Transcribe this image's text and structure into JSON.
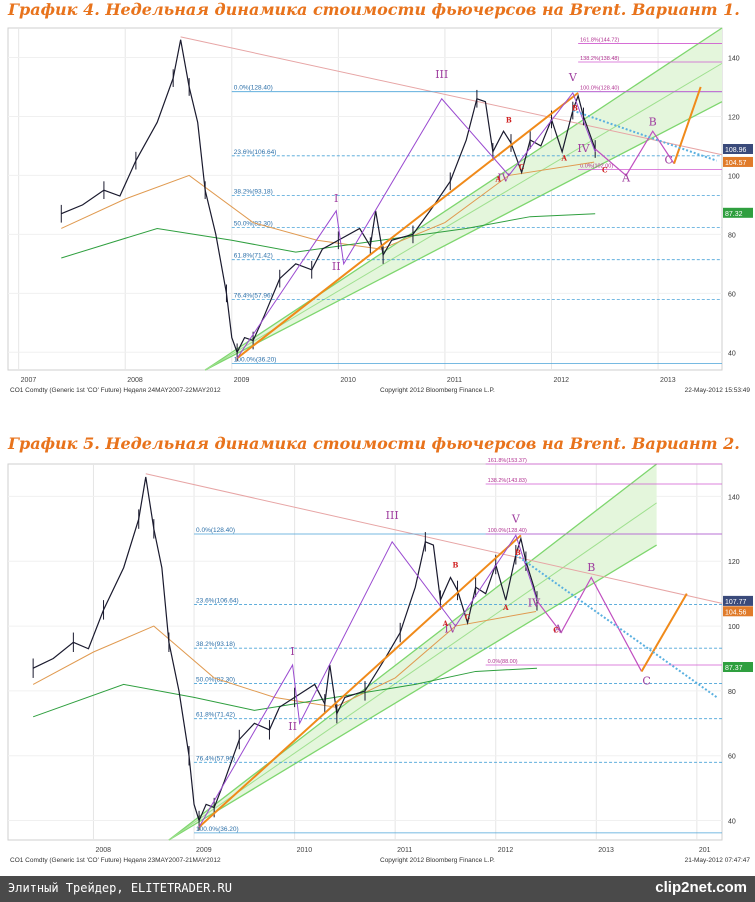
{
  "chart_data": [
    {
      "type": "line",
      "title": "График 4.   Недельная динамика стоимости фьючерсов на Brent. Вариант 1.",
      "source_label": "CO1 Comdty (Generic 1st 'CO' Future) Неделя 24MAY2007-22MAY2012",
      "copyright": "Copyright 2012 Bloomberg Finance L.P.",
      "timestamp": "22-May-2012 15:53:49",
      "x_ticks": [
        "2007",
        "2008",
        "2009",
        "2010",
        "2011",
        "2012",
        "2013"
      ],
      "y_ticks": [
        40,
        60,
        80,
        100,
        120,
        140
      ],
      "ylim": [
        34,
        150
      ],
      "price_path": [
        [
          2007.4,
          87
        ],
        [
          2007.6,
          90
        ],
        [
          2007.8,
          95
        ],
        [
          2007.95,
          93
        ],
        [
          2008.1,
          105
        ],
        [
          2008.3,
          118
        ],
        [
          2008.45,
          133
        ],
        [
          2008.52,
          146
        ],
        [
          2008.6,
          130
        ],
        [
          2008.68,
          118
        ],
        [
          2008.75,
          95
        ],
        [
          2008.85,
          80
        ],
        [
          2008.95,
          60
        ],
        [
          2009.0,
          45
        ],
        [
          2009.05,
          40
        ],
        [
          2009.12,
          45
        ],
        [
          2009.2,
          44
        ],
        [
          2009.3,
          52
        ],
        [
          2009.45,
          65
        ],
        [
          2009.6,
          70
        ],
        [
          2009.75,
          68
        ],
        [
          2009.85,
          75
        ],
        [
          2010.0,
          78
        ],
        [
          2010.2,
          82
        ],
        [
          2010.3,
          76
        ],
        [
          2010.35,
          88
        ],
        [
          2010.42,
          73
        ],
        [
          2010.5,
          78
        ],
        [
          2010.7,
          80
        ],
        [
          2010.9,
          90
        ],
        [
          2011.05,
          98
        ],
        [
          2011.2,
          112
        ],
        [
          2011.3,
          126
        ],
        [
          2011.38,
          125
        ],
        [
          2011.45,
          108
        ],
        [
          2011.55,
          115
        ],
        [
          2011.62,
          111
        ],
        [
          2011.72,
          101
        ],
        [
          2011.8,
          112
        ],
        [
          2011.9,
          110
        ],
        [
          2012.0,
          119
        ],
        [
          2012.1,
          108
        ],
        [
          2012.2,
          122
        ],
        [
          2012.25,
          127
        ],
        [
          2012.3,
          120
        ],
        [
          2012.38,
          112
        ],
        [
          2012.41,
          108.96
        ]
      ],
      "fib_levels": [
        {
          "label": "0.0%(128.40)",
          "value": 128.4
        },
        {
          "label": "23.6%(106.64)",
          "value": 106.64
        },
        {
          "label": "38.2%(93.18)",
          "value": 93.18
        },
        {
          "label": "50.0%(82.30)",
          "value": 82.3
        },
        {
          "label": "61.8%(71.42)",
          "value": 71.42
        },
        {
          "label": "76.4%(57.96)",
          "value": 57.96
        },
        {
          "label": "100.0%(36.20)",
          "value": 36.2
        }
      ],
      "fib_ext": [
        {
          "label": "161.8%(144.72)",
          "value": 144.72
        },
        {
          "label": "138.2%(138.48)",
          "value": 138.48
        },
        {
          "label": "100.0%(128.40)",
          "value": 128.4
        },
        {
          "label": "0.0%(102.00)",
          "value": 102.0
        }
      ],
      "fib_ext_x": 2012.25,
      "price_tags": [
        {
          "label": "108.96",
          "value": 108.96,
          "color": "#3a4a7a"
        },
        {
          "label": "104.57",
          "value": 104.57,
          "color": "#e07b2a"
        },
        {
          "label": "87.32",
          "value": 87.32,
          "color": "#2f9f3f"
        }
      ],
      "wave_labels": [
        {
          "text": "I",
          "x": 2009.98,
          "y": 91
        },
        {
          "text": "II",
          "x": 2009.98,
          "y": 68
        },
        {
          "text": "III",
          "x": 2010.97,
          "y": 133
        },
        {
          "text": "IV",
          "x": 2011.55,
          "y": 98
        },
        {
          "text": "V",
          "x": 2012.2,
          "y": 132
        },
        {
          "text": "IV",
          "x": 2012.3,
          "y": 108
        },
        {
          "text": "A",
          "x": 2012.7,
          "y": 98
        },
        {
          "text": "B",
          "x": 2012.95,
          "y": 117
        },
        {
          "text": "C",
          "x": 2013.1,
          "y": 104
        }
      ],
      "abc_small": [
        {
          "text": "A",
          "x": 2011.5,
          "y": 98
        },
        {
          "text": "B",
          "x": 2011.6,
          "y": 118
        },
        {
          "text": "C",
          "x": 2011.72,
          "y": 102
        },
        {
          "text": "A",
          "x": 2012.12,
          "y": 105
        },
        {
          "text": "B",
          "x": 2012.22,
          "y": 122
        },
        {
          "text": "C",
          "x": 2012.5,
          "y": 101
        }
      ],
      "projection": [
        [
          2012.41,
          108.96
        ],
        [
          2012.7,
          100
        ],
        [
          2012.95,
          115
        ],
        [
          2013.15,
          104
        ],
        [
          2013.4,
          130
        ]
      ],
      "x_range": [
        2006.9,
        2013.6
      ]
    },
    {
      "type": "line",
      "title": "График 5.   Недельная динамика стоимости фьючерсов на Brent. Вариант 2.",
      "source_label": "CO1 Comdty (Generic 1st 'CO' Future) Неделя 23MAY2007-21MAY2012",
      "copyright": "Copyright 2012 Bloomberg Finance L.P.",
      "timestamp": "21-May-2012 07:47:47",
      "x_ticks": [
        "2008",
        "2009",
        "2010",
        "2011",
        "2012",
        "2013",
        "201"
      ],
      "y_ticks": [
        40,
        60,
        80,
        100,
        120,
        140
      ],
      "ylim": [
        34,
        150
      ],
      "price_path": [
        [
          2007.4,
          87
        ],
        [
          2007.6,
          90
        ],
        [
          2007.8,
          95
        ],
        [
          2007.95,
          93
        ],
        [
          2008.1,
          105
        ],
        [
          2008.3,
          118
        ],
        [
          2008.45,
          133
        ],
        [
          2008.52,
          146
        ],
        [
          2008.6,
          130
        ],
        [
          2008.68,
          118
        ],
        [
          2008.75,
          95
        ],
        [
          2008.85,
          80
        ],
        [
          2008.95,
          60
        ],
        [
          2009.0,
          45
        ],
        [
          2009.05,
          40
        ],
        [
          2009.12,
          45
        ],
        [
          2009.2,
          44
        ],
        [
          2009.3,
          52
        ],
        [
          2009.45,
          65
        ],
        [
          2009.6,
          70
        ],
        [
          2009.75,
          68
        ],
        [
          2009.85,
          75
        ],
        [
          2010.0,
          78
        ],
        [
          2010.2,
          82
        ],
        [
          2010.3,
          76
        ],
        [
          2010.35,
          88
        ],
        [
          2010.42,
          73
        ],
        [
          2010.5,
          78
        ],
        [
          2010.7,
          80
        ],
        [
          2010.9,
          90
        ],
        [
          2011.05,
          98
        ],
        [
          2011.2,
          112
        ],
        [
          2011.3,
          126
        ],
        [
          2011.38,
          125
        ],
        [
          2011.45,
          108
        ],
        [
          2011.55,
          115
        ],
        [
          2011.62,
          111
        ],
        [
          2011.72,
          101
        ],
        [
          2011.8,
          112
        ],
        [
          2011.9,
          110
        ],
        [
          2012.0,
          119
        ],
        [
          2012.1,
          108
        ],
        [
          2012.2,
          122
        ],
        [
          2012.25,
          127
        ],
        [
          2012.3,
          120
        ],
        [
          2012.38,
          112
        ],
        [
          2012.41,
          107.77
        ]
      ],
      "fib_levels": [
        {
          "label": "0.0%(128.40)",
          "value": 128.4
        },
        {
          "label": "23.6%(106.64)",
          "value": 106.64
        },
        {
          "label": "38.2%(93.18)",
          "value": 93.18
        },
        {
          "label": "50.0%(82.30)",
          "value": 82.3
        },
        {
          "label": "61.8%(71.42)",
          "value": 71.42
        },
        {
          "label": "76.4%(57.96)",
          "value": 57.96
        },
        {
          "label": "100.0%(36.20)",
          "value": 36.2
        }
      ],
      "fib_ext": [
        {
          "label": "161.8%(153.37)",
          "value": 153.37
        },
        {
          "label": "138.2%(143.83)",
          "value": 143.83
        },
        {
          "label": "100.0%(128.40)",
          "value": 128.4
        },
        {
          "label": "0.0%(88.00)",
          "value": 88.0
        }
      ],
      "fib_ext_x": 2011.9,
      "price_tags": [
        {
          "label": "107.77",
          "value": 107.77,
          "color": "#3a4a7a"
        },
        {
          "label": "104.56",
          "value": 104.56,
          "color": "#e07b2a"
        },
        {
          "label": "87.37",
          "value": 87.37,
          "color": "#2f9f3f"
        }
      ],
      "wave_labels": [
        {
          "text": "I",
          "x": 2009.98,
          "y": 91
        },
        {
          "text": "II",
          "x": 2009.98,
          "y": 68
        },
        {
          "text": "III",
          "x": 2010.97,
          "y": 133
        },
        {
          "text": "IV",
          "x": 2011.55,
          "y": 98
        },
        {
          "text": "V",
          "x": 2012.2,
          "y": 132
        },
        {
          "text": "IV",
          "x": 2012.38,
          "y": 106
        },
        {
          "text": "A",
          "x": 2012.62,
          "y": 98
        },
        {
          "text": "B",
          "x": 2012.95,
          "y": 117
        },
        {
          "text": "C",
          "x": 2013.5,
          "y": 82
        }
      ],
      "abc_small": [
        {
          "text": "A",
          "x": 2011.5,
          "y": 100
        },
        {
          "text": "B",
          "x": 2011.6,
          "y": 118
        },
        {
          "text": "C",
          "x": 2011.72,
          "y": 102
        },
        {
          "text": "A",
          "x": 2012.1,
          "y": 105
        },
        {
          "text": "B",
          "x": 2012.22,
          "y": 122
        },
        {
          "text": "C",
          "x": 2012.6,
          "y": 98
        }
      ],
      "projection": [
        [
          2012.41,
          107.77
        ],
        [
          2012.65,
          98
        ],
        [
          2012.95,
          115
        ],
        [
          2013.45,
          86
        ],
        [
          2013.9,
          110
        ]
      ],
      "x_range": [
        2007.15,
        2014.25
      ]
    }
  ],
  "footer": {
    "text": "Элитный Трейдер, ELITETRADER.RU",
    "logo": "clip2net.com"
  }
}
